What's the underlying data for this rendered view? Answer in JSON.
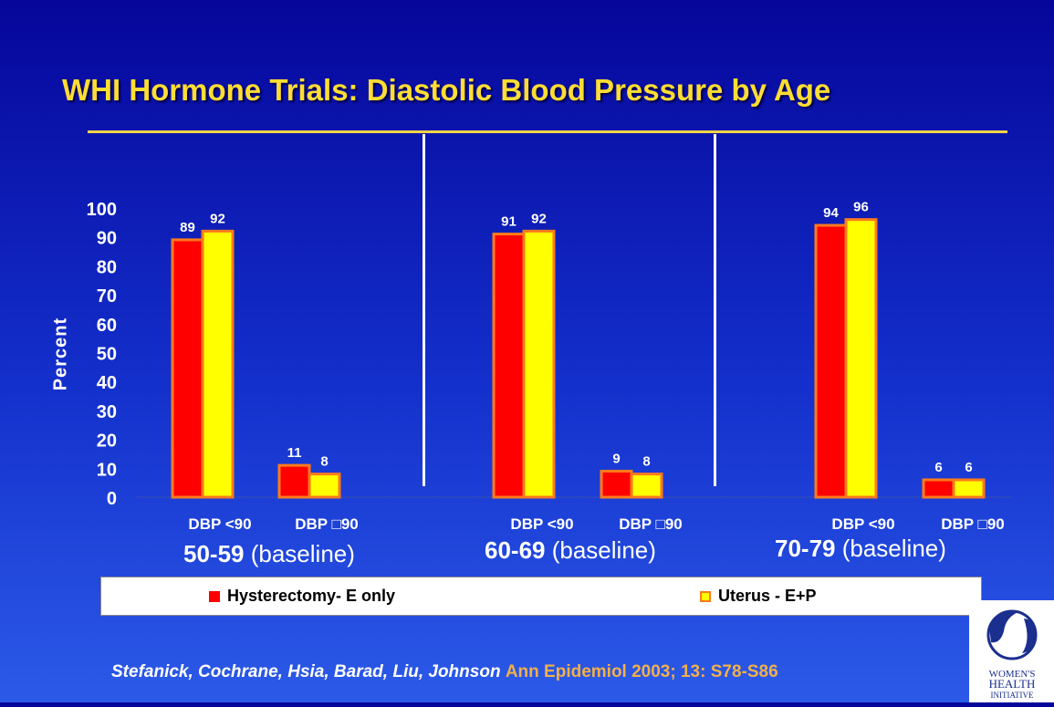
{
  "title": "WHI Hormone Trials: Diastolic Blood Pressure by Age",
  "chart_data": {
    "type": "bar",
    "ylabel": "Percent",
    "ylim": [
      0,
      100
    ],
    "yticks": [
      0,
      10,
      20,
      30,
      40,
      50,
      60,
      70,
      80,
      90,
      100
    ],
    "grid": false,
    "groups": [
      {
        "age": "50-59",
        "age_suffix": " (baseline)",
        "categories": [
          "DBP <90",
          "DBP □90"
        ],
        "series": [
          {
            "name": "Hysterectomy- E only",
            "values": [
              89,
              11
            ]
          },
          {
            "name": "Uterus - E+P",
            "values": [
              92,
              8
            ]
          }
        ]
      },
      {
        "age": "60-69",
        "age_suffix": " (baseline)",
        "categories": [
          "DBP <90",
          "DBP □90"
        ],
        "series": [
          {
            "name": "Hysterectomy- E only",
            "values": [
              91,
              9
            ]
          },
          {
            "name": "Uterus - E+P",
            "values": [
              92,
              8
            ]
          }
        ]
      },
      {
        "age": "70-79",
        "age_suffix": " (baseline)",
        "categories": [
          "DBP <90",
          "DBP □90"
        ],
        "series": [
          {
            "name": "Hysterectomy- E only",
            "values": [
              94,
              6
            ]
          },
          {
            "name": "Uterus - E+P",
            "values": [
              96,
              6
            ]
          }
        ]
      }
    ],
    "legend": {
      "placement": "bottom",
      "entries": [
        "Hysterectomy- E only",
        "Uterus - E+P"
      ]
    }
  },
  "colors": {
    "series1_fill": "#ff0000",
    "series2_fill": "#ffff00",
    "bar_border": "#ff7a1a",
    "tick_text": "#ffffff",
    "data_label": "#ffffff",
    "accent": "#ffdd33"
  },
  "citation": {
    "authors": "Stefanick, Cochrane, Hsia, Barad, Liu, Johnson",
    "journal": "Ann Epidemiol 2003; 13: S78-S86"
  },
  "logo": {
    "line1": "WOMEN'S",
    "line2": "HEALTH",
    "line3": "INITIATIVE"
  }
}
